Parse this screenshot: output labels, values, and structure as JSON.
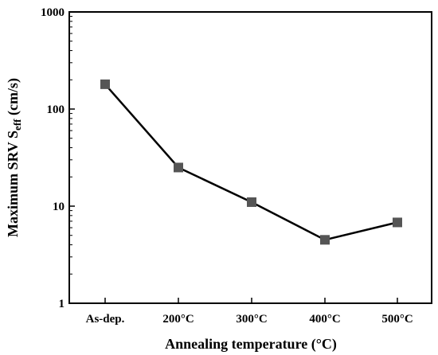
{
  "chart_data": {
    "type": "line",
    "title": "",
    "xlabel": "Annealing temperature (°C)",
    "ylabel": {
      "main": "Maximum SRV S",
      "sub": "eff",
      "unit": " (cm/s)"
    },
    "categories": [
      "As-dep.",
      "200°C",
      "300°C",
      "400°C",
      "500°C"
    ],
    "yscale": "log",
    "ylim": [
      1,
      1000
    ],
    "yticks": [
      1,
      10,
      100,
      1000
    ],
    "ytick_labels": [
      "1",
      "10",
      "100",
      "1000"
    ],
    "series": [
      {
        "values": [
          180,
          25,
          11,
          4.5,
          6.8
        ]
      }
    ],
    "marker": "square",
    "line_color": "#000000",
    "marker_color": "#555555",
    "grid": false,
    "legend": "none"
  }
}
